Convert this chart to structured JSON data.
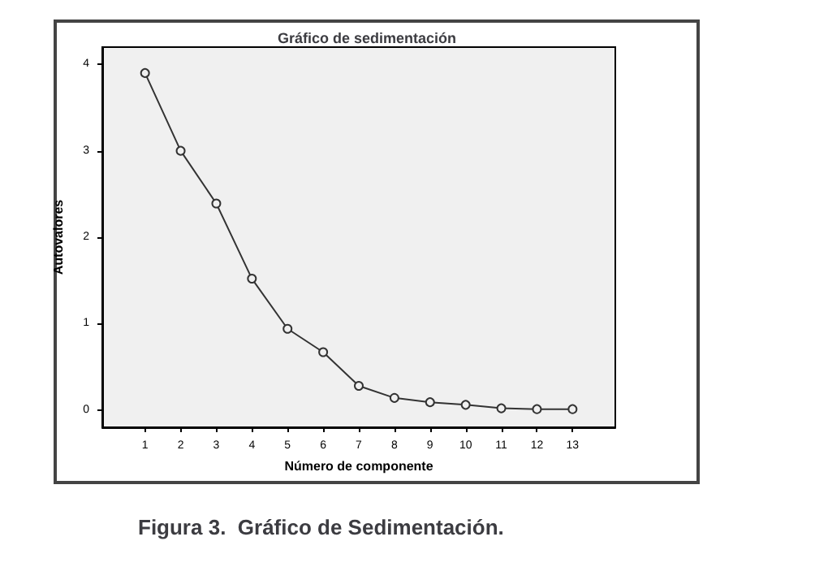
{
  "chart_data": {
    "type": "line",
    "title": "Gráfico de sedimentación",
    "xlabel": "Número de componente",
    "ylabel": "Autovalores",
    "annotations": [
      "Figura 3.  Gráfico de Sedimentación."
    ],
    "x": [
      1,
      2,
      3,
      4,
      5,
      6,
      7,
      8,
      9,
      10,
      11,
      12,
      13
    ],
    "series": [
      {
        "color": "#333333",
        "values": [
          3.9,
          3.0,
          2.39,
          1.52,
          0.94,
          0.67,
          0.28,
          0.14,
          0.09,
          0.06,
          0.02,
          0.01,
          0.01
        ]
      }
    ],
    "xlim": [
      -0.2,
      14.2
    ],
    "xticks": [
      1,
      2,
      3,
      4,
      5,
      6,
      7,
      8,
      9,
      10,
      11,
      12,
      13
    ],
    "ylim": [
      -0.2,
      4.2
    ],
    "yticks": [
      0,
      1,
      2,
      3,
      4
    ],
    "grid": false,
    "marker": "circle",
    "line_style": "solid"
  }
}
